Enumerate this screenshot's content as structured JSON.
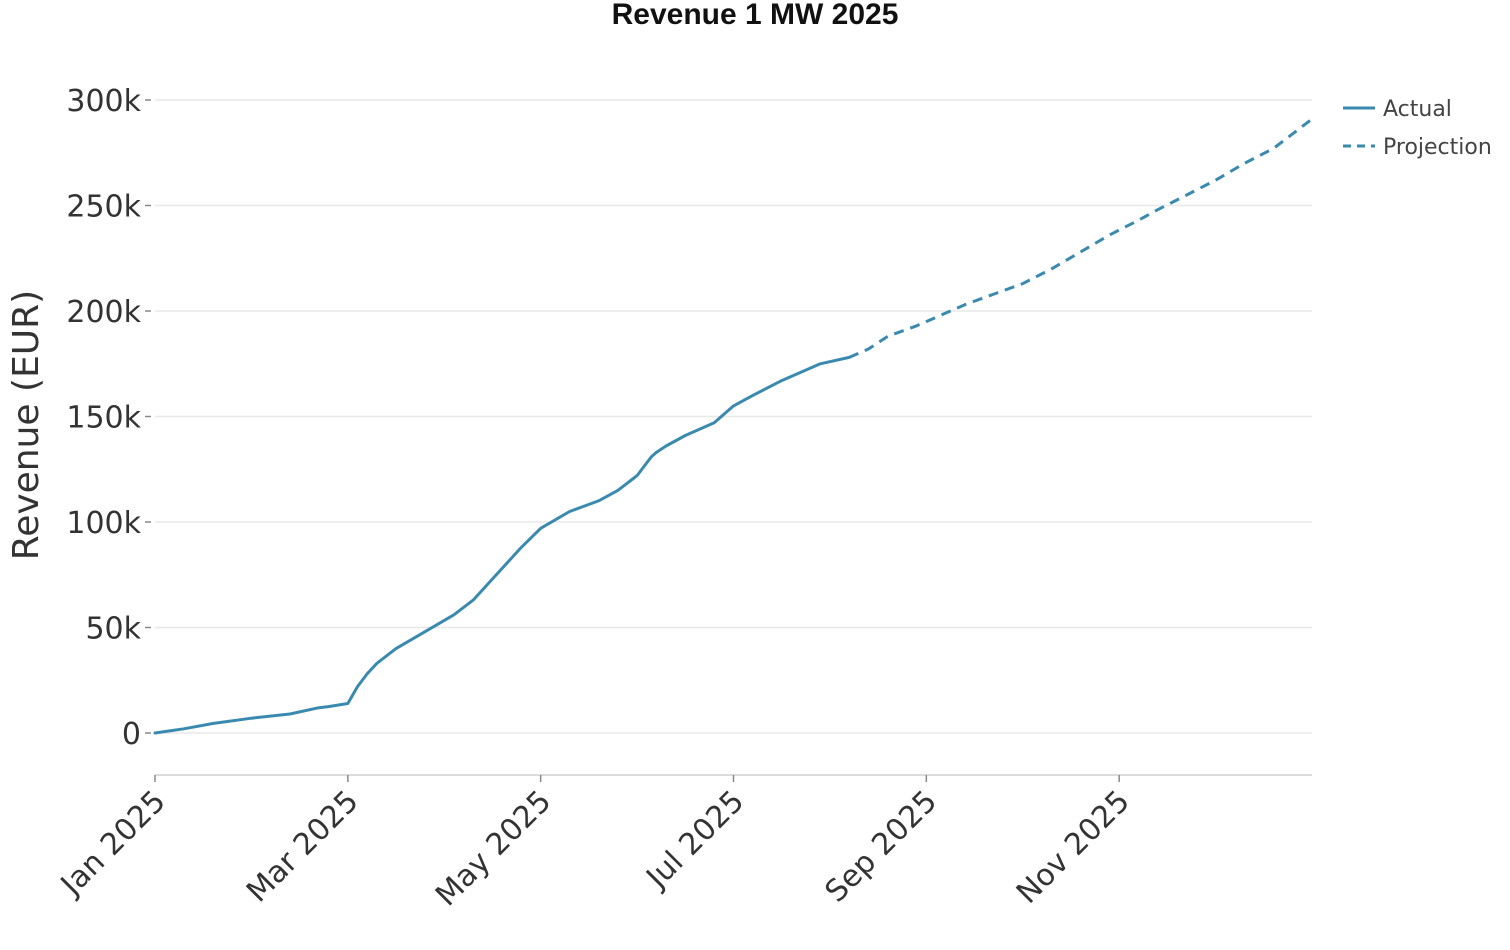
{
  "chart_data": {
    "type": "line",
    "title": "Revenue 1 MW 2025",
    "xlabel": "",
    "ylabel": "Revenue (EUR)",
    "ylim": [
      -20000,
      300000
    ],
    "xlim": [
      0,
      12
    ],
    "grid": true,
    "legend_position": "top-right",
    "x_ticks": [
      {
        "value": 0,
        "label": "Jan 2025"
      },
      {
        "value": 2,
        "label": "Mar 2025"
      },
      {
        "value": 4,
        "label": "May 2025"
      },
      {
        "value": 6,
        "label": "Jul 2025"
      },
      {
        "value": 8,
        "label": "Sep 2025"
      },
      {
        "value": 10,
        "label": "Nov 2025"
      }
    ],
    "y_ticks": [
      {
        "value": 0,
        "label": "0"
      },
      {
        "value": 50000,
        "label": "50k"
      },
      {
        "value": 100000,
        "label": "100k"
      },
      {
        "value": 150000,
        "label": "150k"
      },
      {
        "value": 200000,
        "label": "200k"
      },
      {
        "value": 250000,
        "label": "250k"
      },
      {
        "value": 300000,
        "label": "300k"
      }
    ],
    "series": [
      {
        "name": "Actual",
        "style": "solid",
        "color": "#3a8ab0",
        "x": [
          0.0,
          0.3,
          0.6,
          1.0,
          1.4,
          1.7,
          1.8,
          2.0,
          2.05,
          2.1,
          2.2,
          2.3,
          2.5,
          2.8,
          3.1,
          3.3,
          3.6,
          3.8,
          4.0,
          4.3,
          4.6,
          4.8,
          5.0,
          5.1,
          5.15,
          5.2,
          5.3,
          5.5,
          5.8,
          6.0,
          6.2,
          6.5,
          6.9,
          7.2
        ],
        "y": [
          0,
          2000,
          4500,
          7000,
          9000,
          12000,
          12500,
          14000,
          18000,
          22000,
          28000,
          33000,
          40000,
          48000,
          56000,
          63000,
          78000,
          88000,
          97000,
          105000,
          110000,
          115000,
          122000,
          128000,
          131000,
          133000,
          136000,
          141000,
          147000,
          155000,
          160000,
          167000,
          175000,
          178000
        ]
      },
      {
        "name": "Projection",
        "style": "dashed",
        "color": "#3a8ab0",
        "x": [
          7.2,
          7.4,
          7.6,
          7.9,
          8.1,
          8.4,
          8.7,
          9.0,
          9.3,
          9.6,
          9.9,
          10.2,
          10.4,
          10.7,
          11.0,
          11.3,
          11.6,
          11.8,
          12.0
        ],
        "y": [
          178000,
          182000,
          188000,
          193000,
          197000,
          203000,
          208000,
          213000,
          220000,
          228000,
          236000,
          243000,
          248000,
          255000,
          262000,
          270000,
          277000,
          284000,
          291000
        ]
      }
    ]
  }
}
